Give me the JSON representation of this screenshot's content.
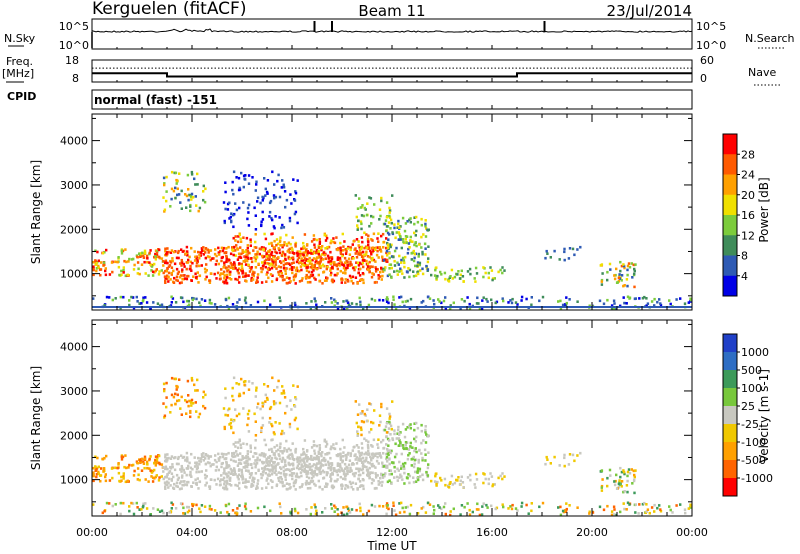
{
  "header": {
    "station": "Kerguelen (fitACF)",
    "beam": "Beam 11",
    "date": "23/Jul/2014"
  },
  "noise_panel": {
    "left_label": "N.Sky",
    "right_label": "N.Search",
    "ticks": [
      "10^5",
      "10^0"
    ],
    "spike_hours": [
      8.9,
      9.6,
      18.1
    ]
  },
  "freq_panel": {
    "left_label_1": "Freq.",
    "left_label_2": "[MHz]",
    "left_ticks": [
      "18",
      "8"
    ],
    "right_label": "Nave",
    "right_ticks": [
      "60",
      "0"
    ],
    "freq_steps": [
      {
        "from": 0,
        "to": 0.25,
        "value": 12
      },
      {
        "from": 0.25,
        "to": 3.0,
        "value": 12
      },
      {
        "from": 3.0,
        "to": 17.0,
        "value": 10.5
      },
      {
        "from": 17.0,
        "to": 24.0,
        "value": 12
      }
    ],
    "nave_level": 38
  },
  "cpid": {
    "label": "CPID",
    "mode": "normal (fast) -151"
  },
  "xaxis": {
    "label": "Time UT",
    "ticks": [
      "00:00",
      "04:00",
      "08:00",
      "12:00",
      "16:00",
      "20:00",
      "00:00"
    ],
    "range_hours": [
      0,
      24
    ]
  },
  "chart_data": [
    {
      "type": "heatmap",
      "name": "power",
      "ylabel": "Slant Range [km]",
      "y_ticks": [
        "1000",
        "2000",
        "3000",
        "4000"
      ],
      "ylim": [
        180,
        4600
      ],
      "colorbar_label": "Power [dB]",
      "colorbar_ticks": [
        "4",
        "8",
        "12",
        "16",
        "20",
        "24",
        "28"
      ],
      "colorbar_range": [
        0,
        32
      ],
      "colors": [
        "#0000e6",
        "#2e5ab4",
        "#3f8c5a",
        "#7ccc3c",
        "#f0e000",
        "#ffa000",
        "#ff5a00",
        "#ff0000"
      ]
    },
    {
      "type": "heatmap",
      "name": "velocity",
      "ylabel": "Slant Range [km]",
      "y_ticks": [
        "1000",
        "2000",
        "3000",
        "4000"
      ],
      "ylim": [
        180,
        4600
      ],
      "colorbar_label": "Velocity [m s-1]",
      "colorbar_ticks": [
        "1000",
        "500",
        "100",
        "25",
        "-25",
        "-100",
        "-500",
        "-1000"
      ],
      "colors": [
        "#2040c8",
        "#2e6ec4",
        "#3c9a5a",
        "#78c83c",
        "#c8c8c0",
        "#f0c800",
        "#ffa000",
        "#ff6400",
        "#ff0000"
      ]
    }
  ]
}
